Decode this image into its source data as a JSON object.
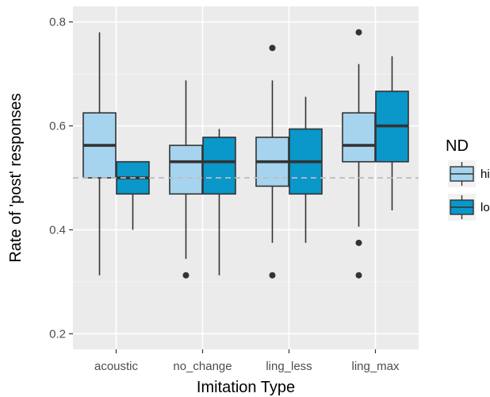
{
  "chart_data": {
    "type": "boxplot",
    "xlabel": "Imitation Type",
    "ylabel": "Rate of 'post' responses",
    "categories": [
      "acoustic",
      "no_change",
      "ling_less",
      "ling_max"
    ],
    "ylim": [
      0.17,
      0.83
    ],
    "yticks": [
      0.2,
      0.4,
      0.6,
      0.8
    ],
    "ytick_labels": [
      "0.2",
      "0.4",
      "0.6",
      "0.8"
    ],
    "grid": true,
    "reference_line": {
      "y": 0.5,
      "style": "dashed",
      "color": "#bdbdbd"
    },
    "legend": {
      "title": "ND",
      "position": "right"
    },
    "series": [
      {
        "name": "hi",
        "color": "#a6d3ee",
        "boxes": [
          {
            "category": "acoustic",
            "whisker_low": 0.3125,
            "q1": 0.5,
            "median": 0.5625,
            "q3": 0.625,
            "whisker_high": 0.78,
            "outliers": []
          },
          {
            "category": "no_change",
            "whisker_low": 0.344,
            "q1": 0.469,
            "median": 0.531,
            "q3": 0.5625,
            "whisker_high": 0.6875,
            "outliers": [
              0.3125
            ]
          },
          {
            "category": "ling_less",
            "whisker_low": 0.375,
            "q1": 0.484,
            "median": 0.531,
            "q3": 0.578,
            "whisker_high": 0.6875,
            "outliers": [
              0.3125,
              0.75
            ]
          },
          {
            "category": "ling_max",
            "whisker_low": 0.406,
            "q1": 0.531,
            "median": 0.5625,
            "q3": 0.625,
            "whisker_high": 0.719,
            "outliers": [
              0.3125,
              0.375,
              0.78
            ]
          }
        ]
      },
      {
        "name": "lo",
        "color": "#0a97c9",
        "boxes": [
          {
            "category": "acoustic",
            "whisker_low": 0.4,
            "q1": 0.469,
            "median": 0.5,
            "q3": 0.531,
            "whisker_high": 0.531,
            "outliers": []
          },
          {
            "category": "no_change",
            "whisker_low": 0.3125,
            "q1": 0.469,
            "median": 0.531,
            "q3": 0.578,
            "whisker_high": 0.594,
            "outliers": []
          },
          {
            "category": "ling_less",
            "whisker_low": 0.375,
            "q1": 0.469,
            "median": 0.531,
            "q3": 0.594,
            "whisker_high": 0.656,
            "outliers": []
          },
          {
            "category": "ling_max",
            "whisker_low": 0.4375,
            "q1": 0.531,
            "median": 0.6,
            "q3": 0.6665,
            "whisker_high": 0.734,
            "outliers": []
          }
        ]
      }
    ],
    "colors": {
      "panel_background": "#ebebeb",
      "grid_major": "#ffffff",
      "box_outline": "#333333",
      "outlier": "#333333"
    }
  }
}
